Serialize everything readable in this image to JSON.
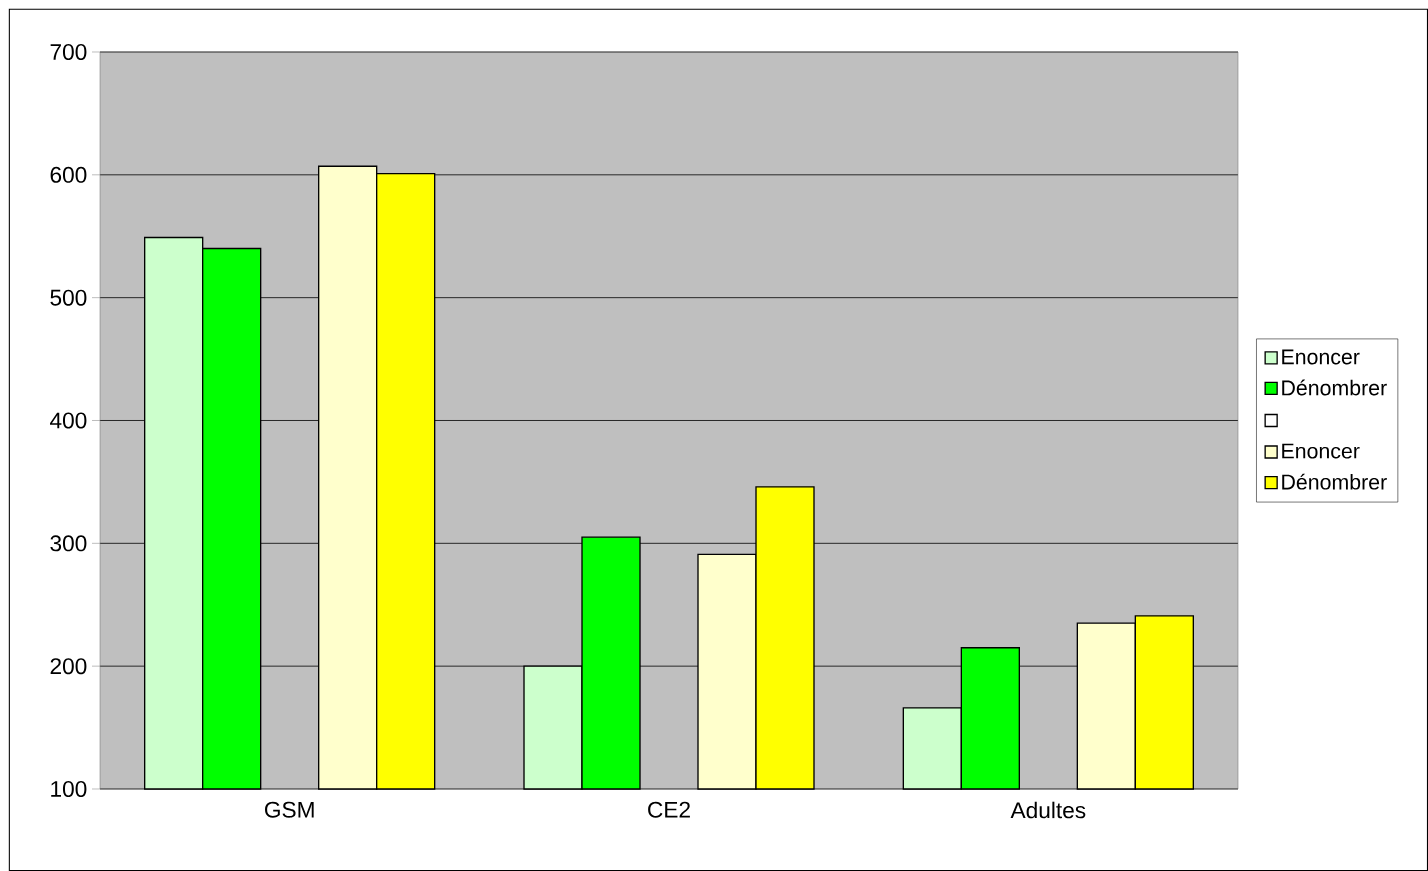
{
  "chart_data": {
    "type": "bar",
    "categories": [
      "GSM",
      "CE2",
      "Adultes"
    ],
    "series": [
      {
        "name": "Enoncer",
        "color": "#ccffcc",
        "values": [
          549,
          200,
          166
        ]
      },
      {
        "name": "Dénombrer",
        "color": "#00ff00",
        "values": [
          540,
          305,
          215
        ]
      },
      {
        "color": "#ffffff",
        "values": [
          null,
          null,
          null
        ]
      },
      {
        "name": "Enoncer",
        "color": "#ffffcc",
        "values": [
          607,
          291,
          235
        ]
      },
      {
        "name": "Dénombrer",
        "color": "#ffff00",
        "values": [
          601,
          346,
          241
        ]
      }
    ],
    "ylim": [
      100,
      700
    ],
    "yticks": [
      100,
      200,
      300,
      400,
      500,
      600,
      700
    ],
    "grid": "y",
    "legend": "right"
  }
}
